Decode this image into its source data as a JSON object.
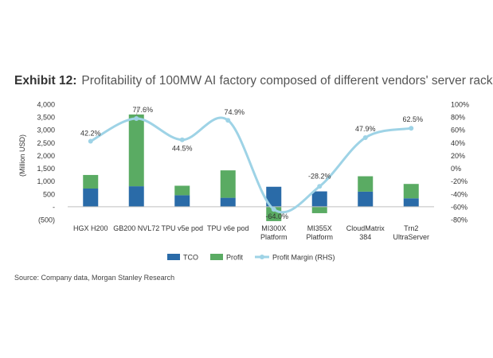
{
  "header": {
    "exhibit": "Exhibit 12:",
    "title": "Profitability of 100MW AI factory composed of different vendors' server rack"
  },
  "source": "Source: Company data, Morgan Stanley Research",
  "colors": {
    "tco": "#2a6ba8",
    "profit": "#5aab63",
    "margin": "#9ed3e6"
  },
  "chart_data": {
    "type": "bar",
    "categories": [
      [
        "HGX H200"
      ],
      [
        "GB200 NVL72"
      ],
      [
        "TPU v5e pod"
      ],
      [
        "TPU v6e pod"
      ],
      [
        "MI300X",
        "Platform"
      ],
      [
        "MI355X",
        "Platform"
      ],
      [
        "CloudMatrix",
        "384"
      ],
      [
        "Trn2",
        "UltraServer"
      ]
    ],
    "series": [
      {
        "name": "TCO",
        "kind": "stacked-bar",
        "values": [
          710,
          800,
          450,
          350,
          780,
          600,
          590,
          330
        ]
      },
      {
        "name": "Profit",
        "kind": "stacked-bar",
        "values": [
          530,
          2800,
          370,
          1070,
          -560,
          -250,
          600,
          560
        ]
      },
      {
        "name": "Profit Margin (RHS)",
        "kind": "line",
        "axis": "right",
        "values": [
          42.2,
          77.6,
          44.5,
          74.9,
          -64.0,
          -28.2,
          47.9,
          62.5
        ]
      }
    ],
    "margin_labels": [
      "42.2%",
      "77.6%",
      "44.5%",
      "74.9%",
      "-64.0%",
      "-28.2%",
      "47.9%",
      "62.5%"
    ],
    "ylabel": "(Million USD)",
    "ylim": [
      -500,
      4000
    ],
    "yticks": [
      4000,
      3500,
      3000,
      2500,
      2000,
      1500,
      1000,
      500,
      0,
      -500
    ],
    "ytick_labels": [
      "4,000",
      "3,500",
      "3,000",
      "2,500",
      "2,000",
      "1,500",
      "1,000",
      "500",
      "-",
      "(500)"
    ],
    "y2lim": [
      -80,
      100
    ],
    "y2ticks": [
      100,
      80,
      60,
      40,
      20,
      0,
      -20,
      -40,
      -60,
      -80
    ],
    "y2tick_labels": [
      "100%",
      "80%",
      "60%",
      "40%",
      "20%",
      "0%",
      "-20%",
      "-40%",
      "-60%",
      "-80%"
    ],
    "legend_position": "bottom",
    "grid": false
  }
}
